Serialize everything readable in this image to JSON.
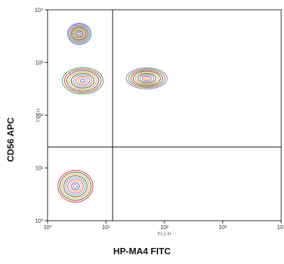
{
  "chart_data": {
    "type": "contour",
    "xlabel": "HP-MA4 FITC",
    "ylabel": "CD56 APC",
    "inner_xlabel": "FL1-H",
    "inner_ylabel": "FL4-H",
    "x_scale": "log",
    "y_scale": "log",
    "xlim": [
      1,
      10000
    ],
    "ylim": [
      1,
      10000
    ],
    "x_ticks": [
      "10⁰",
      "10¹",
      "10²",
      "10³",
      "10⁴"
    ],
    "y_ticks": [
      "10⁰",
      "10¹",
      "10²",
      "10³",
      "10⁴"
    ],
    "quadrant_gate": {
      "x": 13,
      "y": 25
    },
    "populations": [
      {
        "x": 3.0,
        "y": 4.5,
        "spread_x": 0.3,
        "spread_y": 0.3
      },
      {
        "x": 4.0,
        "y": 450,
        "spread_x": 0.35,
        "spread_y": 0.25
      },
      {
        "x": 50,
        "y": 500,
        "spread_x": 0.35,
        "spread_y": 0.2
      },
      {
        "x": 3.5,
        "y": 3500,
        "spread_x": 0.2,
        "spread_y": 0.2
      }
    ],
    "contour_colors": [
      "#2ba84a",
      "#a66bb8",
      "#3c6fd8",
      "#f09a3a",
      "#e0429a",
      "#3fb0c8",
      "#7a4a2a",
      "#c8b830",
      "#555555",
      "#e03030"
    ]
  }
}
